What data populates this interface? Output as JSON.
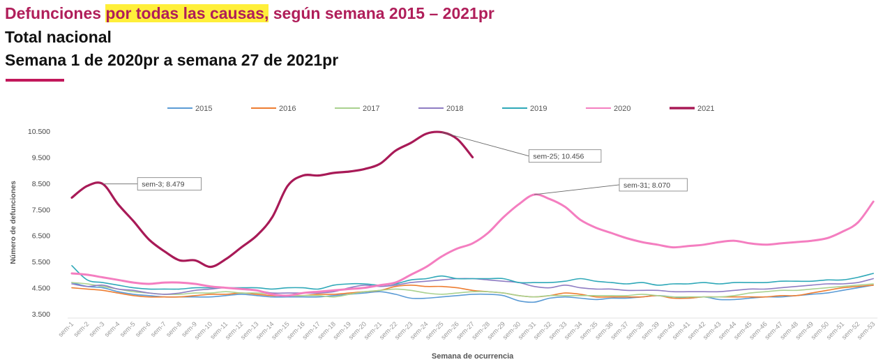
{
  "header": {
    "title_part1": "Defunciones ",
    "title_highlight": "por todas las causas,",
    "title_part2": " según semana 2015 – 2021pr",
    "subtitle1": "Total nacional",
    "subtitle2": "Semana 1 de 2020pr a semana 27 de 2021pr"
  },
  "chart_data": {
    "type": "line",
    "xlabel": "Semana de ocurrencia",
    "ylabel": "Número de defunciones",
    "ylim": [
      3500,
      10500
    ],
    "yticks": [
      3500,
      4500,
      5500,
      6500,
      7500,
      8500,
      9500,
      10500
    ],
    "ytick_labels": [
      "3.500",
      "4.500",
      "5.500",
      "6.500",
      "7.500",
      "8.500",
      "9.500",
      "10.500"
    ],
    "grid": false,
    "legend_position": "top",
    "categories": [
      "sem-1",
      "sem-2",
      "sem-3",
      "sem-4",
      "sem-5",
      "sem-6",
      "sem-7",
      "sem-8",
      "sem-9",
      "sem-10",
      "sem-11",
      "sem-12",
      "sem-13",
      "sem-14",
      "sem-15",
      "sem-16",
      "sem-17",
      "sem-18",
      "sem-19",
      "sem-20",
      "sem-21",
      "sem-22",
      "sem-23",
      "sem-24",
      "sem-25",
      "sem-26",
      "sem-27",
      "sem-28",
      "sem-29",
      "sem-30",
      "sem-31",
      "sem-32",
      "sem-33",
      "sem-34",
      "sem-35",
      "sem-36",
      "sem-37",
      "sem-38",
      "sem-39",
      "sem-40",
      "sem-41",
      "sem-42",
      "sem-43",
      "sem-44",
      "sem-45",
      "sem-46",
      "sem-47",
      "sem-48",
      "sem-49",
      "sem-50",
      "sem-51",
      "sem-52",
      "sem-53"
    ],
    "series": [
      {
        "name": "2015",
        "color": "#5b9bd5",
        "values": [
          4700,
          4550,
          4500,
          4350,
          4250,
          4200,
          4150,
          4150,
          4150,
          4150,
          4200,
          4250,
          4200,
          4150,
          4150,
          4150,
          4150,
          4200,
          4250,
          4300,
          4350,
          4250,
          4100,
          4100,
          4150,
          4200,
          4250,
          4250,
          4200,
          4000,
          3950,
          4100,
          4150,
          4100,
          4050,
          4100,
          4100,
          4150,
          4200,
          4150,
          4100,
          4150,
          4050,
          4050,
          4100,
          4150,
          4150,
          4200,
          4250,
          4300,
          4400,
          4500,
          4600
        ]
      },
      {
        "name": "2016",
        "color": "#ed7d31",
        "values": [
          4500,
          4450,
          4400,
          4300,
          4200,
          4150,
          4150,
          4150,
          4200,
          4250,
          4250,
          4300,
          4250,
          4200,
          4200,
          4200,
          4250,
          4250,
          4300,
          4350,
          4400,
          4550,
          4600,
          4550,
          4550,
          4500,
          4400,
          4350,
          4300,
          4200,
          4150,
          4200,
          4300,
          4250,
          4150,
          4150,
          4150,
          4150,
          4200,
          4100,
          4100,
          4150,
          4150,
          4150,
          4150,
          4150,
          4200,
          4200,
          4300,
          4400,
          4500,
          4550,
          4600
        ]
      },
      {
        "name": "2017",
        "color": "#a9d18e",
        "values": [
          4700,
          4650,
          4550,
          4450,
          4350,
          4300,
          4250,
          4250,
          4300,
          4300,
          4350,
          4300,
          4300,
          4250,
          4200,
          4200,
          4200,
          4150,
          4250,
          4350,
          4400,
          4450,
          4400,
          4300,
          4250,
          4300,
          4350,
          4350,
          4300,
          4200,
          4150,
          4200,
          4200,
          4200,
          4200,
          4200,
          4200,
          4250,
          4200,
          4150,
          4150,
          4150,
          4150,
          4200,
          4300,
          4350,
          4400,
          4400,
          4450,
          4500,
          4550,
          4600,
          4650
        ]
      },
      {
        "name": "2018",
        "color": "#8e7cc3",
        "values": [
          4650,
          4550,
          4600,
          4450,
          4400,
          4300,
          4250,
          4300,
          4400,
          4450,
          4500,
          4450,
          4400,
          4300,
          4300,
          4300,
          4300,
          4350,
          4500,
          4600,
          4550,
          4600,
          4700,
          4750,
          4800,
          4850,
          4850,
          4800,
          4750,
          4700,
          4550,
          4500,
          4600,
          4500,
          4450,
          4450,
          4400,
          4400,
          4400,
          4350,
          4350,
          4350,
          4350,
          4400,
          4450,
          4450,
          4500,
          4550,
          4600,
          4650,
          4650,
          4700,
          4850
        ]
      },
      {
        "name": "2019",
        "color": "#2ea8b8",
        "values": [
          5350,
          4800,
          4700,
          4600,
          4500,
          4450,
          4450,
          4450,
          4500,
          4500,
          4500,
          4500,
          4500,
          4450,
          4500,
          4500,
          4450,
          4600,
          4650,
          4650,
          4600,
          4650,
          4800,
          4850,
          4950,
          4850,
          4850,
          4850,
          4850,
          4700,
          4700,
          4700,
          4750,
          4850,
          4750,
          4700,
          4650,
          4700,
          4600,
          4650,
          4650,
          4700,
          4650,
          4700,
          4700,
          4700,
          4750,
          4750,
          4750,
          4800,
          4800,
          4900,
          5050
        ]
      },
      {
        "name": "2020",
        "color": "#f47ec0",
        "values": [
          5050,
          5000,
          4900,
          4800,
          4700,
          4650,
          4700,
          4700,
          4650,
          4550,
          4500,
          4450,
          4400,
          4250,
          4200,
          4300,
          4350,
          4400,
          4450,
          4500,
          4600,
          4700,
          5000,
          5300,
          5700,
          6000,
          6200,
          6600,
          7200,
          7700,
          8070,
          7900,
          7600,
          7100,
          6800,
          6600,
          6400,
          6250,
          6150,
          6050,
          6100,
          6150,
          6250,
          6300,
          6200,
          6150,
          6200,
          6250,
          6300,
          6400,
          6650,
          7000,
          7800
        ]
      },
      {
        "name": "2021",
        "color": "#a81a57",
        "values": [
          7950,
          8400,
          8479,
          7700,
          7050,
          6350,
          5900,
          5550,
          5550,
          5300,
          5600,
          6050,
          6500,
          7200,
          8400,
          8800,
          8800,
          8900,
          8950,
          9050,
          9250,
          9750,
          10050,
          10400,
          10456,
          10200,
          9500,
          null,
          null,
          null,
          null,
          null,
          null,
          null,
          null,
          null,
          null,
          null,
          null,
          null,
          null,
          null,
          null,
          null,
          null,
          null,
          null,
          null,
          null,
          null,
          null,
          null,
          null
        ]
      }
    ],
    "annotations": [
      {
        "series": "2021",
        "x": "sem-3",
        "label": "sem-3;  8.479"
      },
      {
        "series": "2021",
        "x": "sem-25",
        "label": "sem-25;  10.456"
      },
      {
        "series": "2020",
        "x": "sem-31",
        "label": "sem-31;  8.070"
      }
    ]
  }
}
